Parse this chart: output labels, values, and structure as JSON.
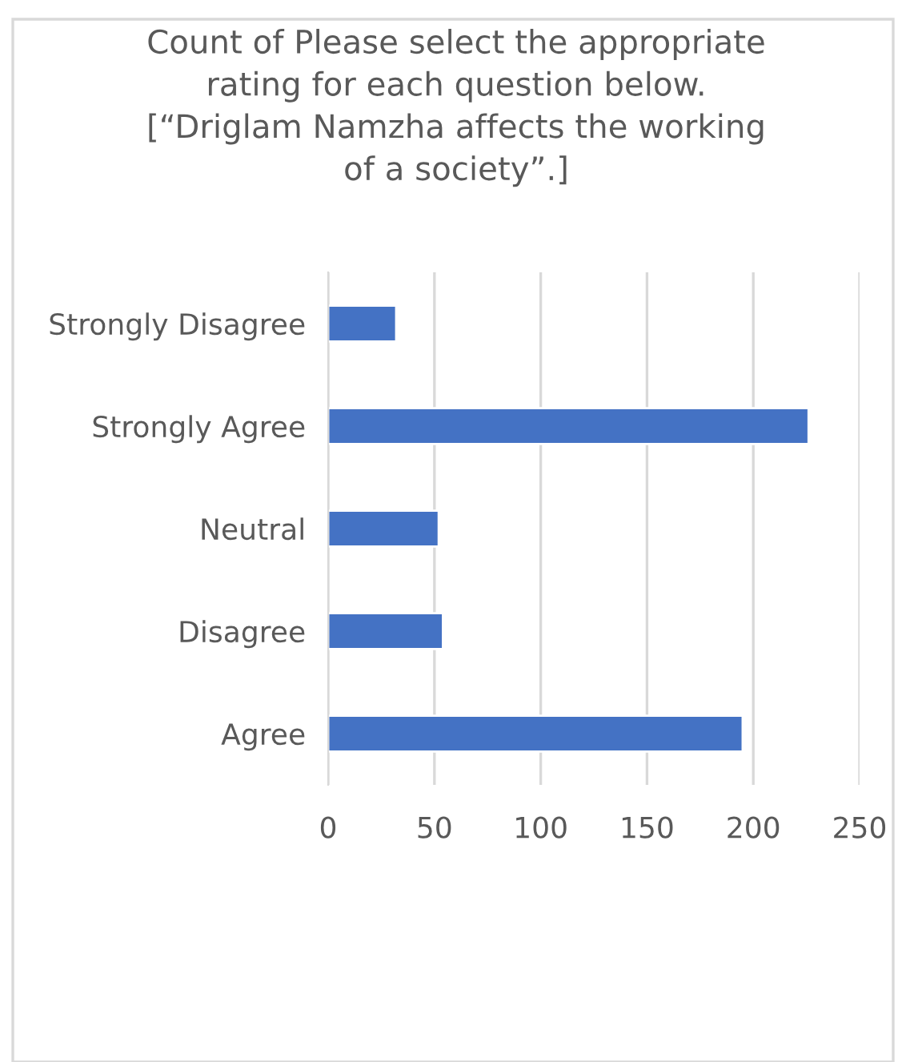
{
  "chart_data": {
    "type": "bar",
    "orientation": "horizontal",
    "title": "Count of Please select the appropriate\nrating for each question below.\n[“Driglam Namzha affects the working\nof a society”.]",
    "categories": [
      "Strongly Disagree",
      "Strongly Agree",
      "Neutral",
      "Disagree",
      "Agree"
    ],
    "values": [
      32,
      226,
      52,
      54,
      195
    ],
    "color": "#4472c4",
    "xlim": [
      0,
      250
    ],
    "xticks": [
      0,
      50,
      100,
      150,
      200,
      250
    ],
    "grid": "x",
    "legend": false
  }
}
